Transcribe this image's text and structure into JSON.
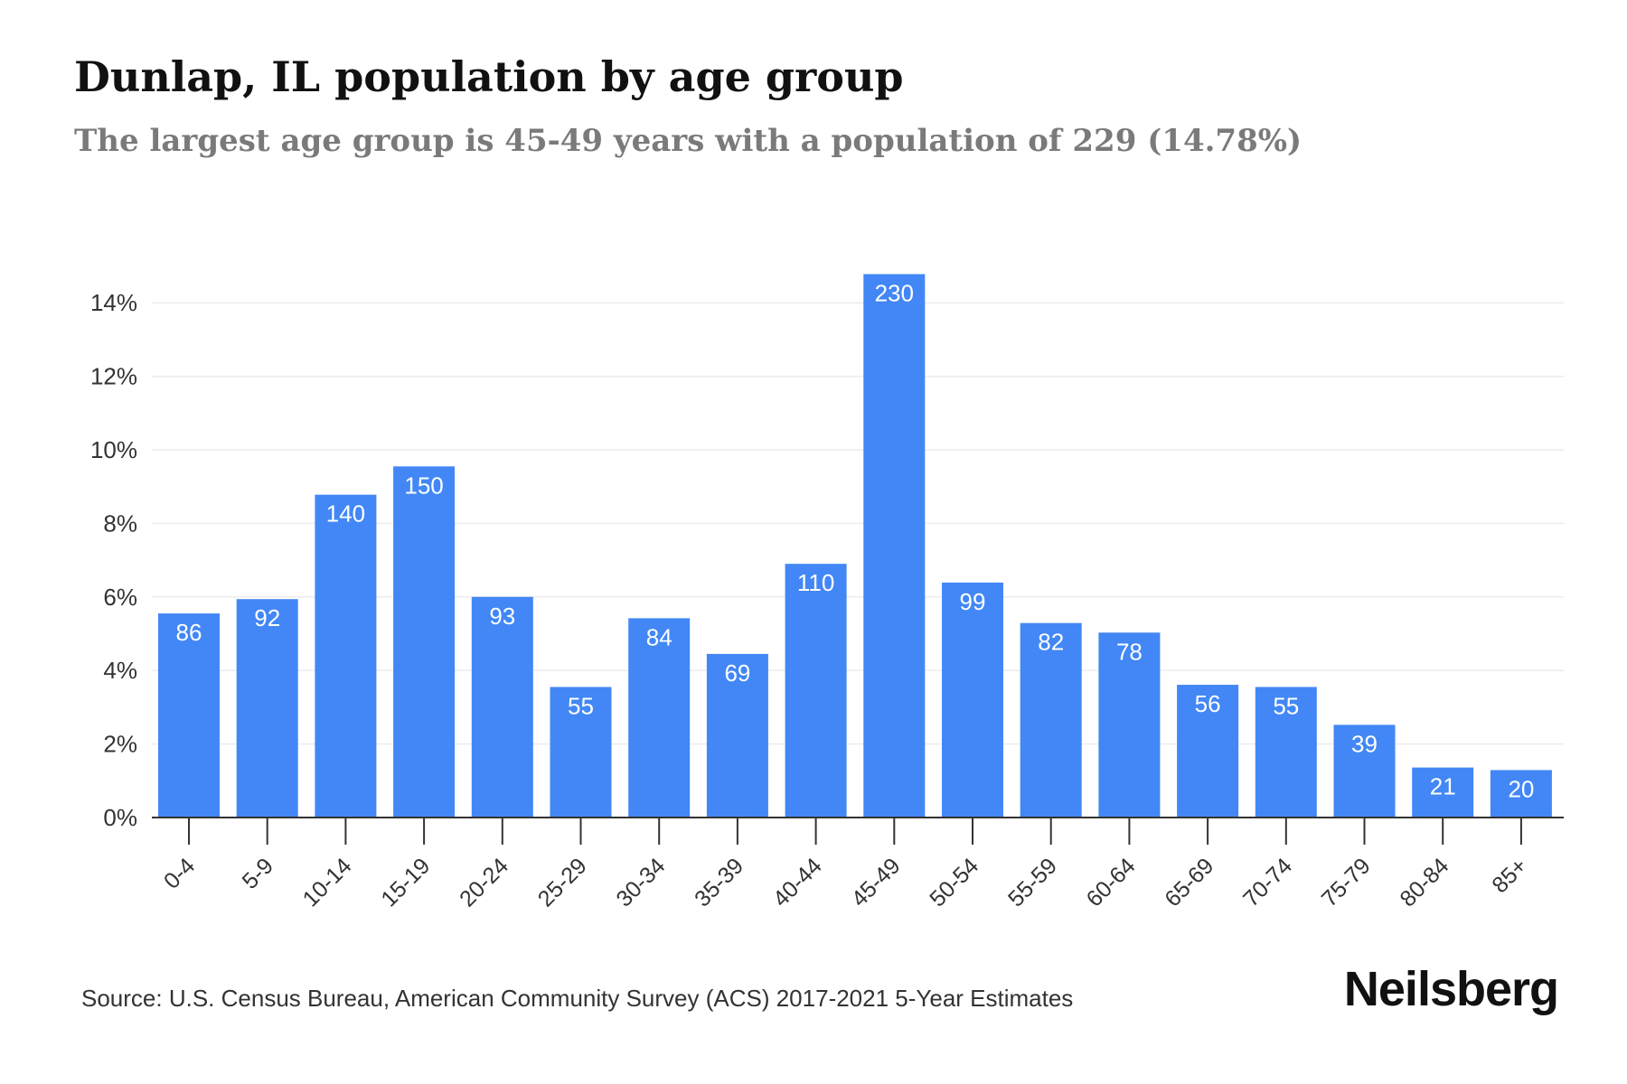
{
  "header": {
    "title": "Dunlap, IL population by age group",
    "subtitle": "The largest age group is 45-49 years with a population of 229 (14.78%)"
  },
  "footer": {
    "source": "Source: U.S. Census Bureau, American Community Survey (ACS) 2017-2021 5-Year Estimates",
    "brand": "Neilsberg"
  },
  "colors": {
    "bar": "#4287f5",
    "bar_label": "#ffffff",
    "grid": "#ececec",
    "axis": "#333333",
    "tick_label": "#333333"
  },
  "chart_data": {
    "type": "bar",
    "categories": [
      "0-4",
      "5-9",
      "10-14",
      "15-19",
      "20-24",
      "25-29",
      "30-34",
      "35-39",
      "40-44",
      "45-49",
      "50-54",
      "55-59",
      "60-64",
      "65-69",
      "70-74",
      "75-79",
      "80-84",
      "85+"
    ],
    "values": [
      5.55,
      5.94,
      8.78,
      9.55,
      6.0,
      3.55,
      5.42,
      4.45,
      6.9,
      14.78,
      6.39,
      5.29,
      5.03,
      3.61,
      3.55,
      2.52,
      1.36,
      1.29
    ],
    "data_labels": [
      "86",
      "92",
      "140",
      "150",
      "93",
      "55",
      "84",
      "69",
      "110",
      "230",
      "99",
      "82",
      "78",
      "56",
      "55",
      "39",
      "21",
      "20"
    ],
    "y_ticks": [
      0,
      2,
      4,
      6,
      8,
      10,
      12,
      14
    ],
    "y_tick_labels": [
      "0%",
      "2%",
      "4%",
      "6%",
      "8%",
      "10%",
      "12%",
      "14%"
    ],
    "ylim": [
      0,
      14
    ],
    "xlabel": "",
    "ylabel": "",
    "grid": true,
    "legend": "none"
  }
}
